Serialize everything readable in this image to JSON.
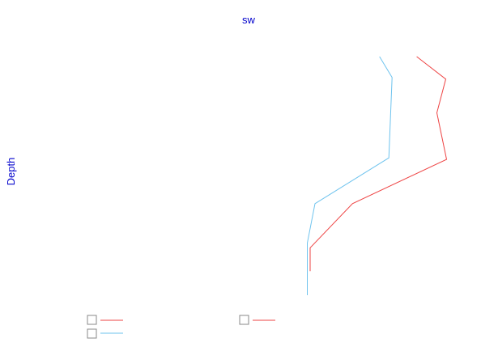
{
  "chart_data": {
    "type": "line",
    "title": "sw",
    "xlabel": "",
    "ylabel": "Depth",
    "grid": false,
    "legend_position": "bottom-left",
    "ylim": [
      0,
      300
    ],
    "xlim": [
      0,
      100
    ],
    "series": [
      {
        "name": "",
        "color": "#ee4444",
        "points": [
          {
            "x": 91.4,
            "y": 0
          },
          {
            "x": 98.6,
            "y": 28
          },
          {
            "x": 96.4,
            "y": 70
          },
          {
            "x": 98.8,
            "y": 128
          },
          {
            "x": 75.5,
            "y": 183
          },
          {
            "x": 65.0,
            "y": 238
          },
          {
            "x": 65.0,
            "y": 267
          }
        ]
      },
      {
        "name": "",
        "color": "#6ec3ee",
        "points": [
          {
            "x": 82.2,
            "y": 0
          },
          {
            "x": 85.3,
            "y": 26
          },
          {
            "x": 84.5,
            "y": 126
          },
          {
            "x": 66.2,
            "y": 183
          },
          {
            "x": 64.3,
            "y": 232
          },
          {
            "x": 64.3,
            "y": 297
          }
        ]
      },
      {
        "name": "",
        "color": "#ee4444",
        "points": []
      }
    ]
  }
}
